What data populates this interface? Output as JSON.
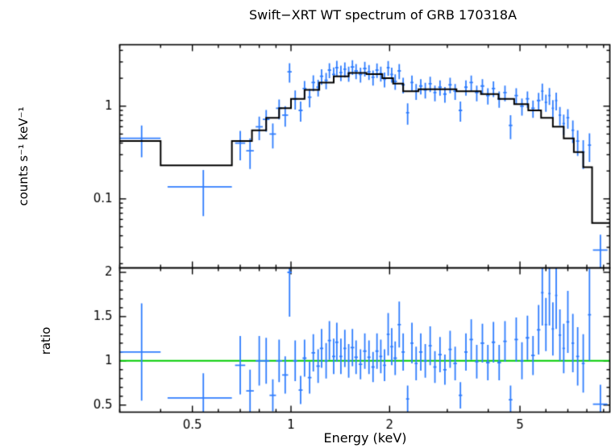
{
  "title": "Swift−XRT WT spectrum of GRB 170318A",
  "xlabel": "Energy (keV)",
  "colors": {
    "data": "#2f7dfe",
    "model": "#000000",
    "ratio_line": "#00cc00",
    "frame": "#000000"
  },
  "chart_data": [
    {
      "type": "scatter",
      "name": "spectrum",
      "ylabel": "counts s⁻¹ keV⁻¹",
      "xscale": "log",
      "yscale": "log",
      "xlim": [
        0.3,
        9.4
      ],
      "ylim": [
        0.018,
        4.6
      ],
      "xticks": [
        0.5,
        1,
        2,
        5
      ],
      "xtick_labels": [
        "0.5",
        "1",
        "2",
        "5"
      ],
      "yticks": [
        0.1,
        1
      ],
      "ytick_labels": [
        "0.1",
        "1"
      ],
      "points_format": [
        "x",
        "y",
        "dx",
        "dy"
      ],
      "model_edges": [
        0.3,
        0.4,
        0.66,
        0.76,
        0.84,
        0.92,
        1.0,
        1.1,
        1.22,
        1.35,
        1.5,
        1.7,
        1.9,
        2.05,
        2.2,
        2.45,
        3.2,
        3.8,
        4.3,
        4.8,
        5.3,
        5.8,
        6.3,
        6.8,
        7.3,
        7.8,
        8.3,
        9.4
      ],
      "model_values": [
        0.42,
        0.23,
        0.42,
        0.55,
        0.75,
        0.95,
        1.2,
        1.5,
        1.8,
        2.1,
        2.28,
        2.22,
        2.0,
        1.75,
        1.45,
        1.52,
        1.45,
        1.35,
        1.2,
        1.05,
        0.9,
        0.75,
        0.6,
        0.45,
        0.32,
        0.22,
        0.055
      ],
      "points": [
        [
          0.35,
          0.45,
          0.05,
          0.17
        ],
        [
          0.54,
          0.135,
          0.12,
          0.07
        ],
        [
          0.7,
          0.4,
          0.025,
          0.14
        ],
        [
          0.75,
          0.33,
          0.02,
          0.12
        ],
        [
          0.8,
          0.6,
          0.02,
          0.17
        ],
        [
          0.84,
          0.72,
          0.02,
          0.19
        ],
        [
          0.88,
          0.5,
          0.02,
          0.15
        ],
        [
          0.92,
          0.95,
          0.02,
          0.23
        ],
        [
          0.96,
          0.8,
          0.02,
          0.2
        ],
        [
          0.99,
          2.35,
          0.015,
          0.55
        ],
        [
          1.03,
          1.2,
          0.015,
          0.28
        ],
        [
          1.07,
          0.9,
          0.015,
          0.22
        ],
        [
          1.1,
          1.55,
          0.015,
          0.32
        ],
        [
          1.14,
          1.25,
          0.015,
          0.28
        ],
        [
          1.17,
          1.8,
          0.015,
          0.35
        ],
        [
          1.21,
          1.6,
          0.015,
          0.33
        ],
        [
          1.24,
          2.1,
          0.015,
          0.4
        ],
        [
          1.28,
          1.9,
          0.015,
          0.38
        ],
        [
          1.31,
          2.45,
          0.015,
          0.45
        ],
        [
          1.35,
          2.2,
          0.015,
          0.42
        ],
        [
          1.38,
          2.6,
          0.015,
          0.48
        ],
        [
          1.42,
          2.3,
          0.015,
          0.44
        ],
        [
          1.46,
          2.5,
          0.015,
          0.46
        ],
        [
          1.5,
          2.25,
          0.015,
          0.42
        ],
        [
          1.54,
          2.65,
          0.02,
          0.48
        ],
        [
          1.58,
          2.4,
          0.02,
          0.44
        ],
        [
          1.63,
          2.2,
          0.02,
          0.4
        ],
        [
          1.68,
          2.55,
          0.02,
          0.46
        ],
        [
          1.73,
          2.35,
          0.02,
          0.43
        ],
        [
          1.78,
          2.05,
          0.02,
          0.38
        ],
        [
          1.83,
          2.45,
          0.02,
          0.44
        ],
        [
          1.88,
          2.25,
          0.02,
          0.41
        ],
        [
          1.93,
          1.95,
          0.02,
          0.36
        ],
        [
          1.98,
          2.6,
          0.02,
          0.47
        ],
        [
          2.03,
          2.2,
          0.02,
          0.4
        ],
        [
          2.08,
          1.85,
          0.025,
          0.35
        ],
        [
          2.14,
          2.4,
          0.025,
          0.44
        ],
        [
          2.2,
          1.7,
          0.025,
          0.33
        ],
        [
          2.27,
          0.85,
          0.025,
          0.22
        ],
        [
          2.34,
          1.8,
          0.025,
          0.34
        ],
        [
          2.41,
          1.45,
          0.025,
          0.28
        ],
        [
          2.49,
          1.65,
          0.03,
          0.31
        ],
        [
          2.57,
          1.5,
          0.03,
          0.29
        ],
        [
          2.66,
          1.75,
          0.03,
          0.33
        ],
        [
          2.75,
          1.4,
          0.03,
          0.27
        ],
        [
          2.85,
          1.6,
          0.035,
          0.3
        ],
        [
          2.95,
          1.35,
          0.035,
          0.26
        ],
        [
          3.06,
          1.7,
          0.035,
          0.32
        ],
        [
          3.17,
          1.45,
          0.04,
          0.28
        ],
        [
          3.29,
          0.9,
          0.04,
          0.22
        ],
        [
          3.42,
          1.6,
          0.04,
          0.3
        ],
        [
          3.55,
          1.8,
          0.045,
          0.34
        ],
        [
          3.69,
          1.4,
          0.045,
          0.27
        ],
        [
          3.84,
          1.65,
          0.05,
          0.31
        ],
        [
          3.99,
          1.3,
          0.05,
          0.26
        ],
        [
          4.15,
          1.55,
          0.05,
          0.3
        ],
        [
          4.32,
          1.2,
          0.055,
          0.24
        ],
        [
          4.5,
          1.4,
          0.055,
          0.27
        ],
        [
          4.68,
          0.62,
          0.06,
          0.18
        ],
        [
          4.87,
          1.3,
          0.06,
          0.26
        ],
        [
          5.07,
          1.0,
          0.065,
          0.21
        ],
        [
          5.27,
          1.2,
          0.065,
          0.24
        ],
        [
          5.48,
          0.95,
          0.07,
          0.2
        ],
        [
          5.7,
          1.15,
          0.07,
          0.24
        ],
        [
          5.85,
          1.45,
          0.05,
          0.3
        ],
        [
          6.0,
          1.1,
          0.05,
          0.23
        ],
        [
          6.15,
          1.3,
          0.05,
          0.27
        ],
        [
          6.3,
          0.95,
          0.05,
          0.21
        ],
        [
          6.45,
          1.15,
          0.05,
          0.25
        ],
        [
          6.62,
          0.8,
          0.06,
          0.18
        ],
        [
          6.8,
          0.65,
          0.06,
          0.16
        ],
        [
          7.0,
          0.75,
          0.07,
          0.18
        ],
        [
          7.25,
          0.55,
          0.07,
          0.15
        ],
        [
          7.5,
          0.42,
          0.08,
          0.13
        ],
        [
          7.8,
          0.32,
          0.08,
          0.11
        ],
        [
          8.15,
          0.38,
          0.09,
          0.13
        ],
        [
          8.8,
          0.028,
          0.45,
          0.013
        ]
      ]
    },
    {
      "type": "scatter",
      "name": "ratio",
      "ylabel": "ratio",
      "xscale": "log",
      "yscale": "linear",
      "xlim": [
        0.3,
        9.4
      ],
      "ylim": [
        0.42,
        2.05
      ],
      "yticks": [
        0.5,
        1,
        1.5,
        2
      ],
      "ytick_labels": [
        "0.5",
        "1",
        "1.5",
        "2"
      ],
      "reference_line": 1,
      "points_format": [
        "x",
        "y",
        "dx",
        "dy"
      ],
      "points": [
        [
          0.35,
          1.1,
          0.05,
          0.55
        ],
        [
          0.54,
          0.58,
          0.12,
          0.28
        ],
        [
          0.7,
          0.95,
          0.025,
          0.33
        ],
        [
          0.75,
          0.66,
          0.02,
          0.24
        ],
        [
          0.8,
          1.0,
          0.02,
          0.28
        ],
        [
          0.84,
          1.0,
          0.02,
          0.26
        ],
        [
          0.88,
          0.61,
          0.02,
          0.18
        ],
        [
          0.92,
          1.0,
          0.02,
          0.24
        ],
        [
          0.96,
          0.84,
          0.02,
          0.21
        ],
        [
          0.99,
          2.0,
          0.015,
          0.5
        ],
        [
          1.03,
          1.0,
          0.015,
          0.23
        ],
        [
          1.07,
          0.67,
          0.015,
          0.16
        ],
        [
          1.1,
          1.03,
          0.015,
          0.21
        ],
        [
          1.14,
          0.81,
          0.015,
          0.18
        ],
        [
          1.17,
          1.09,
          0.015,
          0.21
        ],
        [
          1.21,
          0.94,
          0.015,
          0.19
        ],
        [
          1.24,
          1.14,
          0.015,
          0.22
        ],
        [
          1.28,
          1.0,
          0.015,
          0.2
        ],
        [
          1.31,
          1.23,
          0.015,
          0.22
        ],
        [
          1.35,
          1.05,
          0.015,
          0.2
        ],
        [
          1.38,
          1.21,
          0.015,
          0.22
        ],
        [
          1.42,
          1.05,
          0.015,
          0.2
        ],
        [
          1.46,
          1.14,
          0.015,
          0.21
        ],
        [
          1.5,
          1.0,
          0.015,
          0.19
        ],
        [
          1.54,
          1.15,
          0.02,
          0.21
        ],
        [
          1.58,
          1.04,
          0.02,
          0.19
        ],
        [
          1.63,
          0.96,
          0.02,
          0.17
        ],
        [
          1.68,
          1.11,
          0.02,
          0.2
        ],
        [
          1.73,
          1.04,
          0.02,
          0.19
        ],
        [
          1.78,
          0.93,
          0.02,
          0.17
        ],
        [
          1.83,
          1.11,
          0.02,
          0.2
        ],
        [
          1.88,
          1.05,
          0.02,
          0.19
        ],
        [
          1.93,
          0.95,
          0.02,
          0.18
        ],
        [
          1.98,
          1.3,
          0.02,
          0.24
        ],
        [
          2.03,
          1.16,
          0.02,
          0.21
        ],
        [
          2.08,
          1.03,
          0.025,
          0.19
        ],
        [
          2.14,
          1.41,
          0.025,
          0.26
        ],
        [
          2.2,
          1.1,
          0.025,
          0.21
        ],
        [
          2.27,
          0.57,
          0.025,
          0.15
        ],
        [
          2.34,
          1.2,
          0.025,
          0.23
        ],
        [
          2.41,
          0.97,
          0.025,
          0.19
        ],
        [
          2.49,
          1.1,
          0.03,
          0.21
        ],
        [
          2.57,
          1.0,
          0.03,
          0.19
        ],
        [
          2.66,
          1.17,
          0.03,
          0.22
        ],
        [
          2.75,
          0.93,
          0.03,
          0.18
        ],
        [
          2.85,
          1.07,
          0.035,
          0.2
        ],
        [
          2.95,
          0.9,
          0.035,
          0.17
        ],
        [
          3.06,
          1.13,
          0.035,
          0.21
        ],
        [
          3.17,
          0.97,
          0.04,
          0.19
        ],
        [
          3.29,
          0.61,
          0.04,
          0.15
        ],
        [
          3.42,
          1.1,
          0.04,
          0.21
        ],
        [
          3.55,
          1.24,
          0.045,
          0.23
        ],
        [
          3.69,
          0.99,
          0.045,
          0.19
        ],
        [
          3.84,
          1.2,
          0.05,
          0.22
        ],
        [
          3.99,
          0.98,
          0.05,
          0.2
        ],
        [
          4.15,
          1.21,
          0.05,
          0.23
        ],
        [
          4.32,
          0.98,
          0.055,
          0.2
        ],
        [
          4.5,
          1.22,
          0.055,
          0.23
        ],
        [
          4.68,
          0.56,
          0.06,
          0.16
        ],
        [
          4.87,
          1.24,
          0.06,
          0.25
        ],
        [
          5.07,
          1.0,
          0.065,
          0.21
        ],
        [
          5.27,
          1.26,
          0.065,
          0.25
        ],
        [
          5.48,
          1.06,
          0.07,
          0.22
        ],
        [
          5.7,
          1.35,
          0.07,
          0.28
        ],
        [
          5.85,
          1.77,
          0.05,
          0.37
        ],
        [
          6.0,
          1.41,
          0.05,
          0.3
        ],
        [
          6.15,
          1.76,
          0.05,
          0.36
        ],
        [
          6.3,
          1.36,
          0.05,
          0.3
        ],
        [
          6.45,
          1.74,
          0.05,
          0.38
        ],
        [
          6.62,
          1.29,
          0.06,
          0.29
        ],
        [
          6.8,
          1.14,
          0.06,
          0.28
        ],
        [
          7.0,
          1.44,
          0.07,
          0.35
        ],
        [
          7.25,
          1.2,
          0.07,
          0.33
        ],
        [
          7.5,
          1.05,
          0.08,
          0.33
        ],
        [
          7.8,
          0.97,
          0.08,
          0.33
        ],
        [
          8.15,
          1.52,
          0.09,
          0.52
        ],
        [
          8.8,
          0.51,
          0.45,
          0.22
        ]
      ]
    }
  ]
}
